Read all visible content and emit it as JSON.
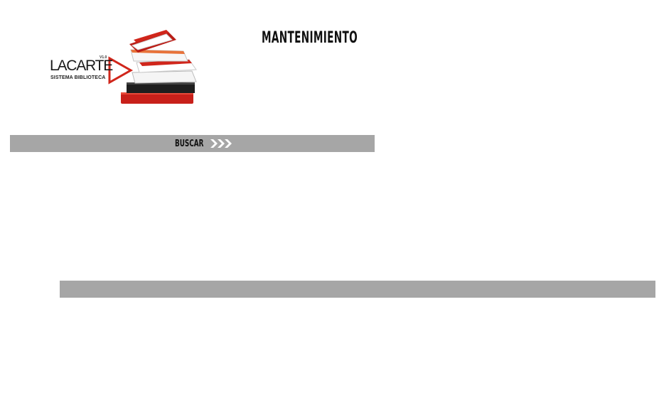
{
  "logo": {
    "name": "LACARTE",
    "version": "V1.0",
    "subtitle": "SISTEMA BIBLIOTECA",
    "icon": "books-stack-icon",
    "accent_color": "#d0261b"
  },
  "header": {
    "title": "MANTENIMIENTO"
  },
  "search": {
    "label": "BUSCAR",
    "icon": "triple-chevron-right-icon"
  },
  "colors": {
    "bar_background": "#a6a6a6",
    "text": "#111111"
  }
}
